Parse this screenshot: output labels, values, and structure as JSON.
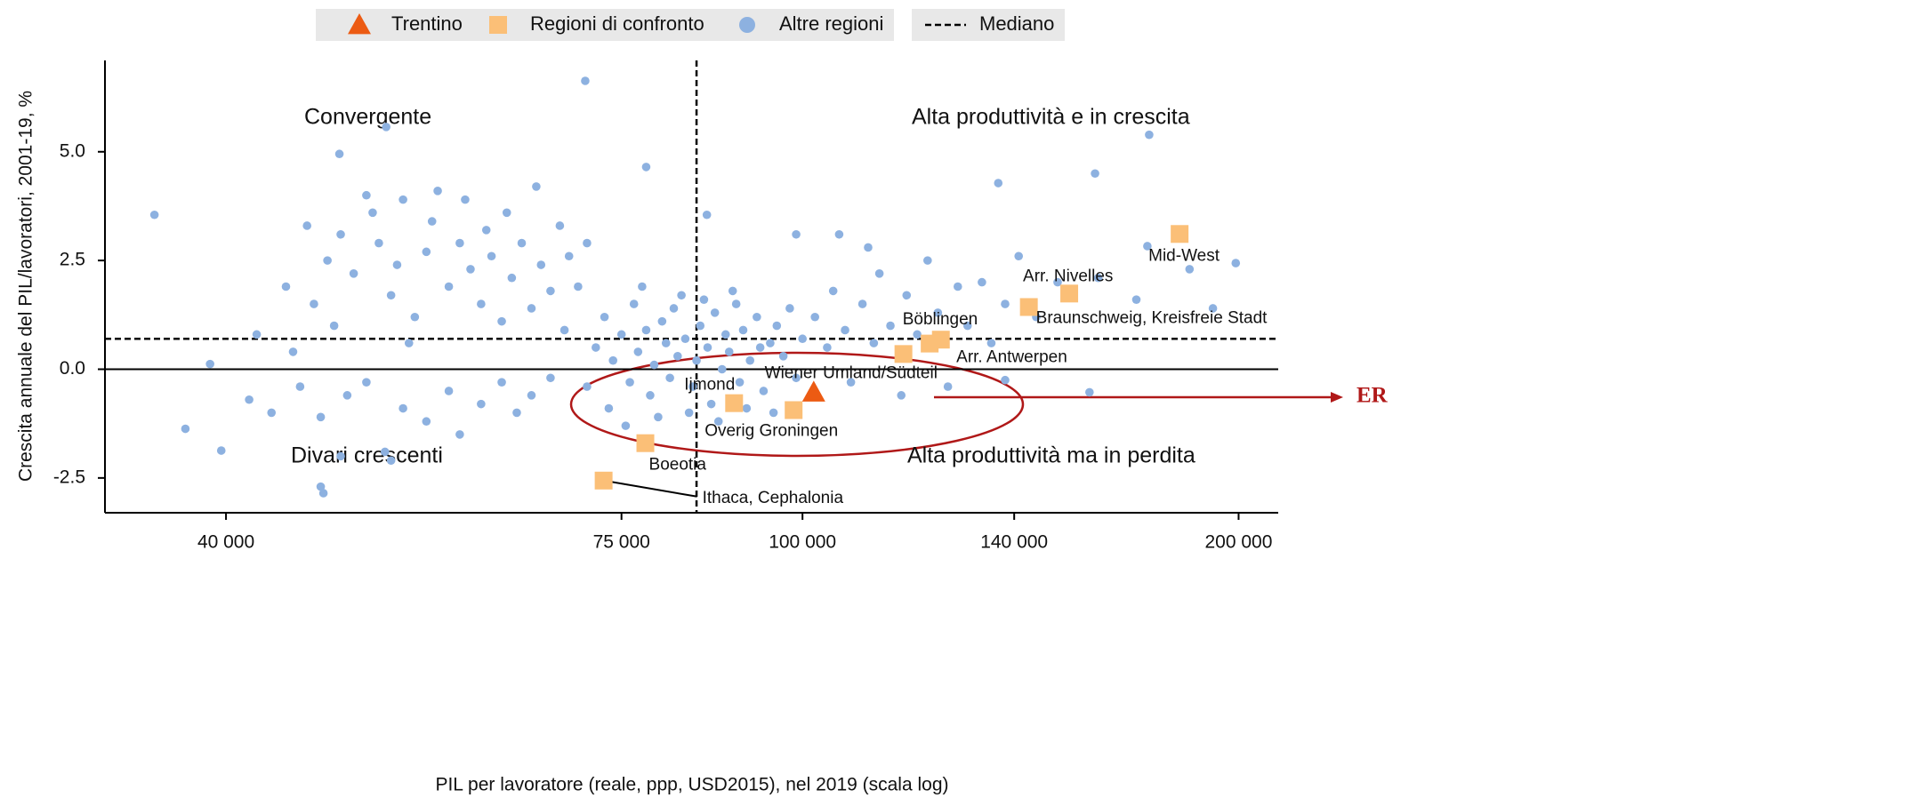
{
  "chart_data": {
    "type": "scatter",
    "xlabel": "PIL per lavoratore (reale, ppp, USD2015), nel 2019 (scala log)",
    "ylabel": "Crescita annuale del PIL/lavoratori, 2001-19, %",
    "xlog": true,
    "xlim": [
      33000,
      213000
    ],
    "ylim": [
      -3.3,
      7.1
    ],
    "xticks": [
      {
        "value": 40000,
        "label": "40 000"
      },
      {
        "value": 75000,
        "label": "75 000"
      },
      {
        "value": 100000,
        "label": "100 000"
      },
      {
        "value": 140000,
        "label": "140 000"
      },
      {
        "value": 200000,
        "label": "200 000"
      }
    ],
    "yticks": [
      {
        "value": -2.5,
        "label": "-2.5"
      },
      {
        "value": 0,
        "label": "0.0"
      },
      {
        "value": 2.5,
        "label": "2.5"
      },
      {
        "value": 5,
        "label": "5.0"
      }
    ],
    "legend": "top",
    "median": {
      "name": "Mediano",
      "x": 84500,
      "y": 0.7
    },
    "quadrants": [
      "Convergente",
      "Alta produttività e in crescita",
      "Divari crescenti",
      "Alta produttività ma in perdita"
    ],
    "annotation": "ER",
    "series": [
      {
        "name": "Altre regioni",
        "color": "#8db1e0",
        "marker": "circle",
        "x": [
          42000,
          44000,
          45500,
          46000,
          47000,
          48000,
          49000,
          50000,
          50500,
          51000,
          52000,
          52500,
          53000,
          54000,
          55000,
          55500,
          56000,
          57000,
          58000,
          58500,
          59000,
          60000,
          60500,
          61000,
          62000,
          62500,
          63000,
          64000,
          65000,
          65500,
          66000,
          67000,
          68000,
          68500,
          69000,
          70000,
          71000,
          44500,
          47500,
          53500,
          41500,
          43000,
          45000,
          46500,
          48500,
          50000,
          51500,
          53000,
          55000,
          57000,
          58000,
          60000,
          62000,
          63500,
          65000,
          67000,
          52000,
          48000,
          72000,
          73000,
          74000,
          75000,
          76000,
          76500,
          77000,
          78000,
          78500,
          79000,
          80000,
          80500,
          81000,
          82000,
          82500,
          83000,
          84000,
          84500,
          85000,
          86000,
          86500,
          87000,
          88000,
          88500,
          89000,
          90000,
          90500,
          91000,
          92000,
          93000,
          94000,
          95000,
          96000,
          97000,
          98000,
          99000,
          100000,
          71000,
          73500,
          75500,
          77500,
          79500,
          81500,
          83500,
          85500,
          87500,
          89500,
          91500,
          93500,
          95500,
          102000,
          104000,
          105000,
          107000,
          108000,
          110000,
          112000,
          113000,
          115000,
          117000,
          118000,
          120000,
          122000,
          124000,
          126000,
          128000,
          130000,
          133000,
          135000,
          138000,
          141000,
          145000,
          150000,
          160000,
          170000,
          185000,
          192000,
          106000,
          111000,
          99000,
          35700,
          37500,
          39700,
          46500,
          46700,
          47900,
          51600,
          70800,
          78000,
          173500,
          159200,
          136500,
          199100,
          173000,
          157800,
          138000,
          39000,
          85900
        ],
        "values": [
          0.8,
          1.9,
          3.3,
          1.5,
          2.5,
          3.1,
          2.2,
          4.0,
          3.6,
          2.9,
          1.7,
          2.4,
          3.9,
          1.2,
          2.7,
          3.4,
          4.1,
          1.9,
          2.9,
          3.9,
          2.3,
          1.5,
          3.2,
          2.6,
          1.1,
          3.6,
          2.1,
          2.9,
          1.4,
          4.2,
          2.4,
          1.8,
          3.3,
          0.9,
          2.6,
          1.9,
          2.9,
          0.4,
          1.0,
          0.6,
          -0.7,
          -1.0,
          -0.4,
          -1.1,
          -0.6,
          -0.3,
          -1.9,
          -0.9,
          -1.2,
          -0.5,
          -1.5,
          -0.8,
          -0.3,
          -1.0,
          -0.6,
          -0.2,
          -2.1,
          -2.0,
          0.5,
          1.2,
          0.2,
          0.8,
          -0.3,
          1.5,
          0.4,
          0.9,
          -0.6,
          0.1,
          1.1,
          0.6,
          -0.2,
          0.3,
          1.7,
          0.7,
          -0.4,
          0.2,
          1.0,
          0.5,
          -0.8,
          1.3,
          0.0,
          0.8,
          0.4,
          1.5,
          -0.3,
          0.9,
          0.2,
          1.2,
          -0.5,
          0.6,
          1.0,
          0.3,
          1.4,
          -0.2,
          0.7,
          -0.4,
          -0.9,
          -1.3,
          1.9,
          -1.1,
          1.4,
          -1.0,
          1.6,
          -1.2,
          1.8,
          -0.9,
          0.5,
          -1.0,
          1.2,
          0.5,
          1.8,
          0.9,
          -0.3,
          1.5,
          0.6,
          2.2,
          1.0,
          -0.6,
          1.7,
          0.8,
          2.5,
          1.3,
          -0.4,
          1.9,
          1.0,
          2.0,
          0.6,
          1.5,
          2.6,
          1.2,
          2.0,
          2.1,
          1.6,
          2.3,
          1.4,
          3.1,
          2.8,
          3.1,
          3.55,
          -1.37,
          -1.87,
          -2.7,
          -2.85,
          4.95,
          5.57,
          6.63,
          4.65,
          5.39,
          4.5,
          4.28,
          2.44,
          2.83,
          -0.53,
          -0.25,
          0.12,
          3.55
        ]
      },
      {
        "name": "Regioni di confronto",
        "color": "#fbbf77",
        "marker": "square",
        "x": [
          182100,
          152800,
          143300,
          124600,
          122400,
          117400,
          89700,
          98600,
          77900,
          72900
        ],
        "values": [
          3.11,
          1.74,
          1.43,
          0.68,
          0.59,
          0.35,
          -0.78,
          -0.94,
          -1.7,
          -2.56
        ],
        "point_labels": [
          "Mid-West",
          "Arr. Nivelles",
          "Braunschweig, Kreisfreie Stadt",
          "Böblingen",
          "Arr. Antwerpen",
          "Wiener Umland/Südteil",
          "Ijmond",
          "Overig Groningen",
          "Boeotia",
          "Ithaca, Cephalonia"
        ]
      },
      {
        "name": "Trentino",
        "color": "#ec5b13",
        "marker": "triangle",
        "x": [
          101800
        ],
        "values": [
          -0.53
        ]
      }
    ]
  }
}
